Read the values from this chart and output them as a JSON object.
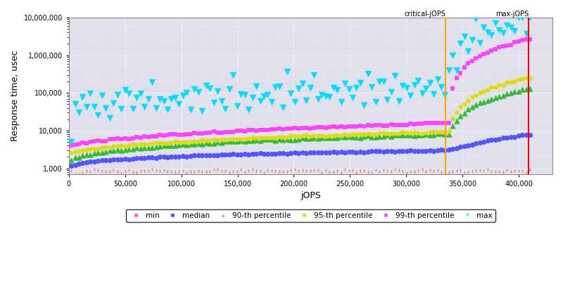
{
  "xlabel": "jOPS",
  "ylabel": "Response time, usec",
  "xlim": [
    0,
    430000
  ],
  "ylim_log": [
    700,
    10000000
  ],
  "critical_jops": 335000,
  "max_jops": 409000,
  "critical_label": "critical-jOPS",
  "max_label": "max-jOPS",
  "critical_color": "#FFA500",
  "max_color": "#FF0000",
  "bg_color": "#E0E0EC",
  "series": {
    "min": {
      "color": "#FF6666",
      "marker": "|",
      "markersize": 3,
      "label": "min"
    },
    "median": {
      "color": "#5555FF",
      "marker": "o",
      "markersize": 3,
      "label": "median"
    },
    "p90": {
      "color": "#33BB33",
      "marker": "^",
      "markersize": 3,
      "label": "90-th percentile"
    },
    "p95": {
      "color": "#DDDD00",
      "marker": "o",
      "markersize": 2,
      "label": "95-th percentile"
    },
    "p99": {
      "color": "#FF44FF",
      "marker": "s",
      "markersize": 2,
      "label": "99-th percentile"
    },
    "max": {
      "color": "#00DDFF",
      "marker": "v",
      "markersize": 4,
      "label": "max"
    }
  }
}
